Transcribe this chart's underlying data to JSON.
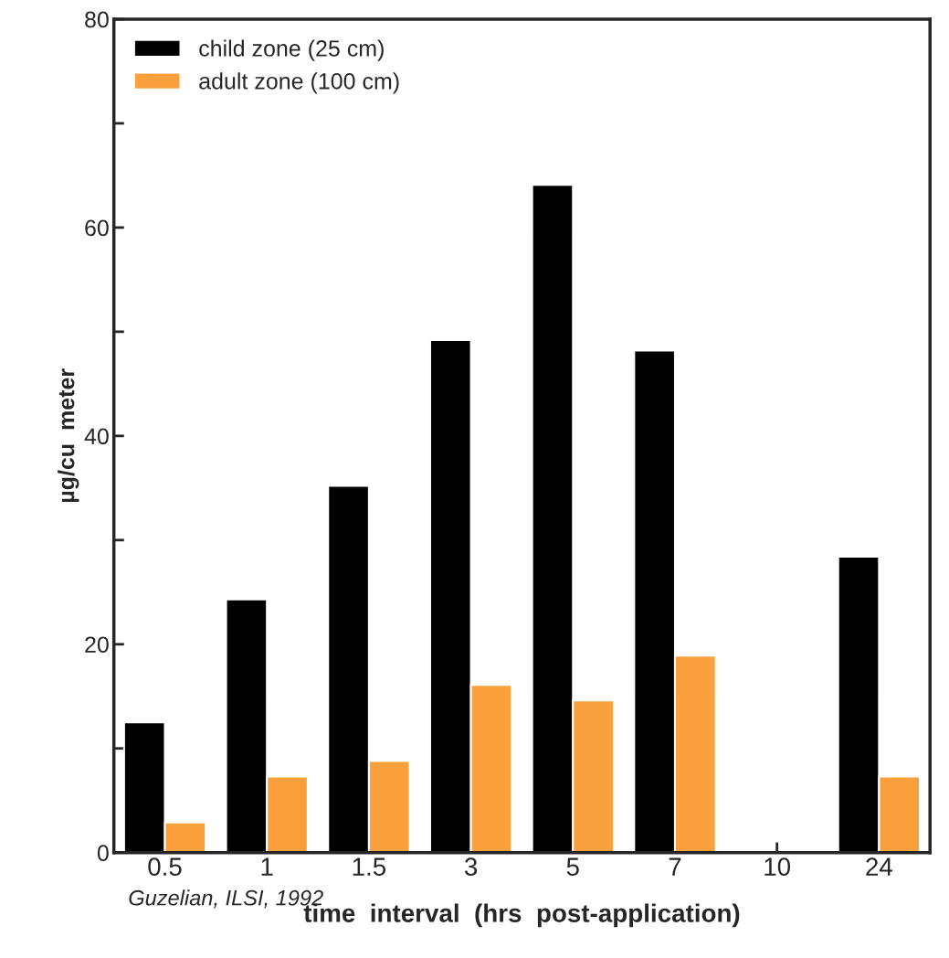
{
  "chart_data": {
    "type": "bar",
    "xlabel": "time  interval  (hrs  post-application)",
    "ylabel": "µg/cu  meter",
    "categories": [
      "0.5",
      "1",
      "1.5",
      "3",
      "5",
      "7",
      "10",
      "24"
    ],
    "series": [
      {
        "name": "child zone (25 cm)",
        "color": "#000000",
        "values": [
          12.5,
          24.3,
          35.2,
          49.2,
          64.1,
          48.2,
          0,
          28.4
        ]
      },
      {
        "name": "adult zone (100 cm)",
        "color": "#f9a03c",
        "values": [
          2.9,
          7.3,
          8.8,
          16.1,
          14.6,
          18.9,
          0,
          7.3
        ]
      }
    ],
    "ylim": [
      0,
      80
    ],
    "yticks": [
      0,
      {
        "value": 10,
        "label": null
      },
      20,
      {
        "value": 30,
        "label": null
      },
      40,
      {
        "value": 50,
        "label": null
      },
      60,
      {
        "value": 70,
        "label": null
      },
      80
    ],
    "grid": false,
    "legend": "top left",
    "annotations": [
      "Guzelian, ILSI, 1992"
    ]
  }
}
